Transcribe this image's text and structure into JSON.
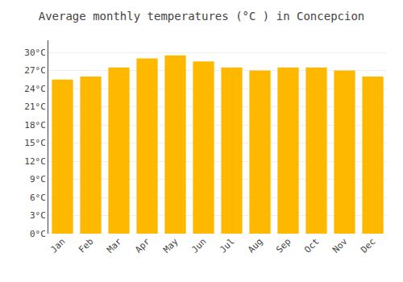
{
  "chart_data": {
    "type": "bar",
    "title": "Average monthly temperatures (°C ) in Concepcion",
    "categories": [
      "Jan",
      "Feb",
      "Mar",
      "Apr",
      "May",
      "Jun",
      "Jul",
      "Aug",
      "Sep",
      "Oct",
      "Nov",
      "Dec"
    ],
    "values": [
      25.5,
      26.0,
      27.5,
      29.0,
      29.5,
      28.5,
      27.5,
      27.0,
      27.5,
      27.5,
      27.0,
      26.0
    ],
    "color": "#FFB800",
    "ylim": [
      0,
      32
    ],
    "yticks": [
      {
        "value": 0,
        "label": "0°C"
      },
      {
        "value": 3,
        "label": "3°C"
      },
      {
        "value": 6,
        "label": "6°C"
      },
      {
        "value": 9,
        "label": "9°C"
      },
      {
        "value": 12,
        "label": "12°C"
      },
      {
        "value": 15,
        "label": "15°C"
      },
      {
        "value": 18,
        "label": "18°C"
      },
      {
        "value": 21,
        "label": "21°C"
      },
      {
        "value": 24,
        "label": "24°C"
      },
      {
        "value": 27,
        "label": "27°C"
      },
      {
        "value": 30,
        "label": "30°C"
      }
    ],
    "grid": true
  }
}
